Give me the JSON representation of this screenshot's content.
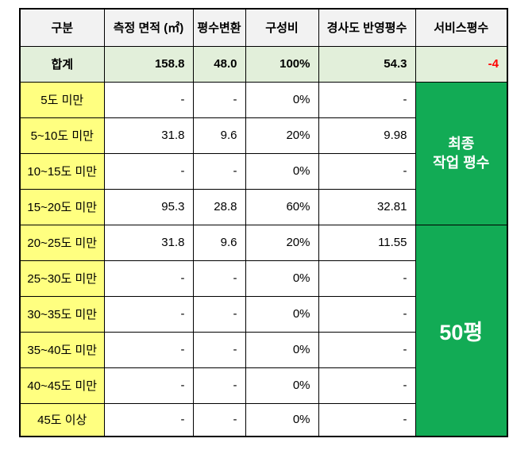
{
  "table": {
    "headers": {
      "category": "구분",
      "measured_area": "측정 면적 (㎡)",
      "pyeong_conversion": "평수변환",
      "composition_ratio": "구성비",
      "slope_adjusted_pyeong": "경사도 반영평수",
      "service_pyeong": "서비스평수"
    },
    "total_row": {
      "label": "합계",
      "area": "158.8",
      "pyeong": "48.0",
      "ratio": "100%",
      "slope_pyeong": "54.3",
      "service": "-4"
    },
    "rows": [
      {
        "label": "5도 미만",
        "area": "-",
        "pyeong": "-",
        "ratio": "0%",
        "slope_pyeong": "-"
      },
      {
        "label": "5~10도 미만",
        "area": "31.8",
        "pyeong": "9.6",
        "ratio": "20%",
        "slope_pyeong": "9.98"
      },
      {
        "label": "10~15도 미만",
        "area": "-",
        "pyeong": "-",
        "ratio": "0%",
        "slope_pyeong": "-"
      },
      {
        "label": "15~20도 미만",
        "area": "95.3",
        "pyeong": "28.8",
        "ratio": "60%",
        "slope_pyeong": "32.81"
      },
      {
        "label": "20~25도 미만",
        "area": "31.8",
        "pyeong": "9.6",
        "ratio": "20%",
        "slope_pyeong": "11.55"
      },
      {
        "label": "25~30도 미만",
        "area": "-",
        "pyeong": "-",
        "ratio": "0%",
        "slope_pyeong": "-"
      },
      {
        "label": "30~35도 미만",
        "area": "-",
        "pyeong": "-",
        "ratio": "0%",
        "slope_pyeong": "-"
      },
      {
        "label": "35~40도 미만",
        "area": "-",
        "pyeong": "-",
        "ratio": "0%",
        "slope_pyeong": "-"
      },
      {
        "label": "40~45도 미만",
        "area": "-",
        "pyeong": "-",
        "ratio": "0%",
        "slope_pyeong": "-"
      },
      {
        "label": "45도 이상",
        "area": "-",
        "pyeong": "-",
        "ratio": "0%",
        "slope_pyeong": "-"
      }
    ],
    "merged": {
      "final_work_pyeong_label": "최종\n작업 평수",
      "final_pyeong_value": "50평"
    },
    "colors": {
      "header_bg": "#f2f2f2",
      "total_row_bg": "#e2efda",
      "label_bg": "#ffff80",
      "merge_green": "#12ab55",
      "negative_text": "#ff0000",
      "border": "#000000"
    }
  }
}
